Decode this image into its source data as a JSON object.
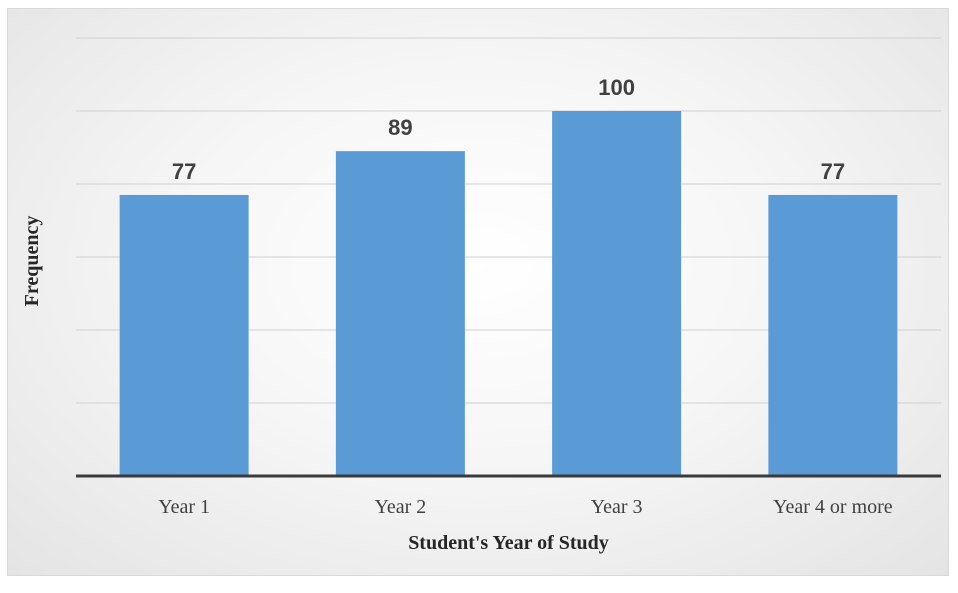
{
  "chart_data": {
    "type": "bar",
    "title": "",
    "xlabel": "Student's Year of Study",
    "ylabel": "Frequency",
    "categories": [
      "Year 1",
      "Year 2",
      "Year 3",
      "Year 4 or more"
    ],
    "values": [
      77,
      89,
      100,
      77
    ],
    "data_labels": [
      "77",
      "89",
      "100",
      "77"
    ],
    "ylim": [
      0,
      120
    ],
    "y_gridline_step": 20,
    "grid": true,
    "legend": "none",
    "colors": {
      "bar": "#5b9bd5",
      "label": "#404040",
      "baseline": "#3a3a3a",
      "gridline": "#d0d0d0"
    }
  }
}
